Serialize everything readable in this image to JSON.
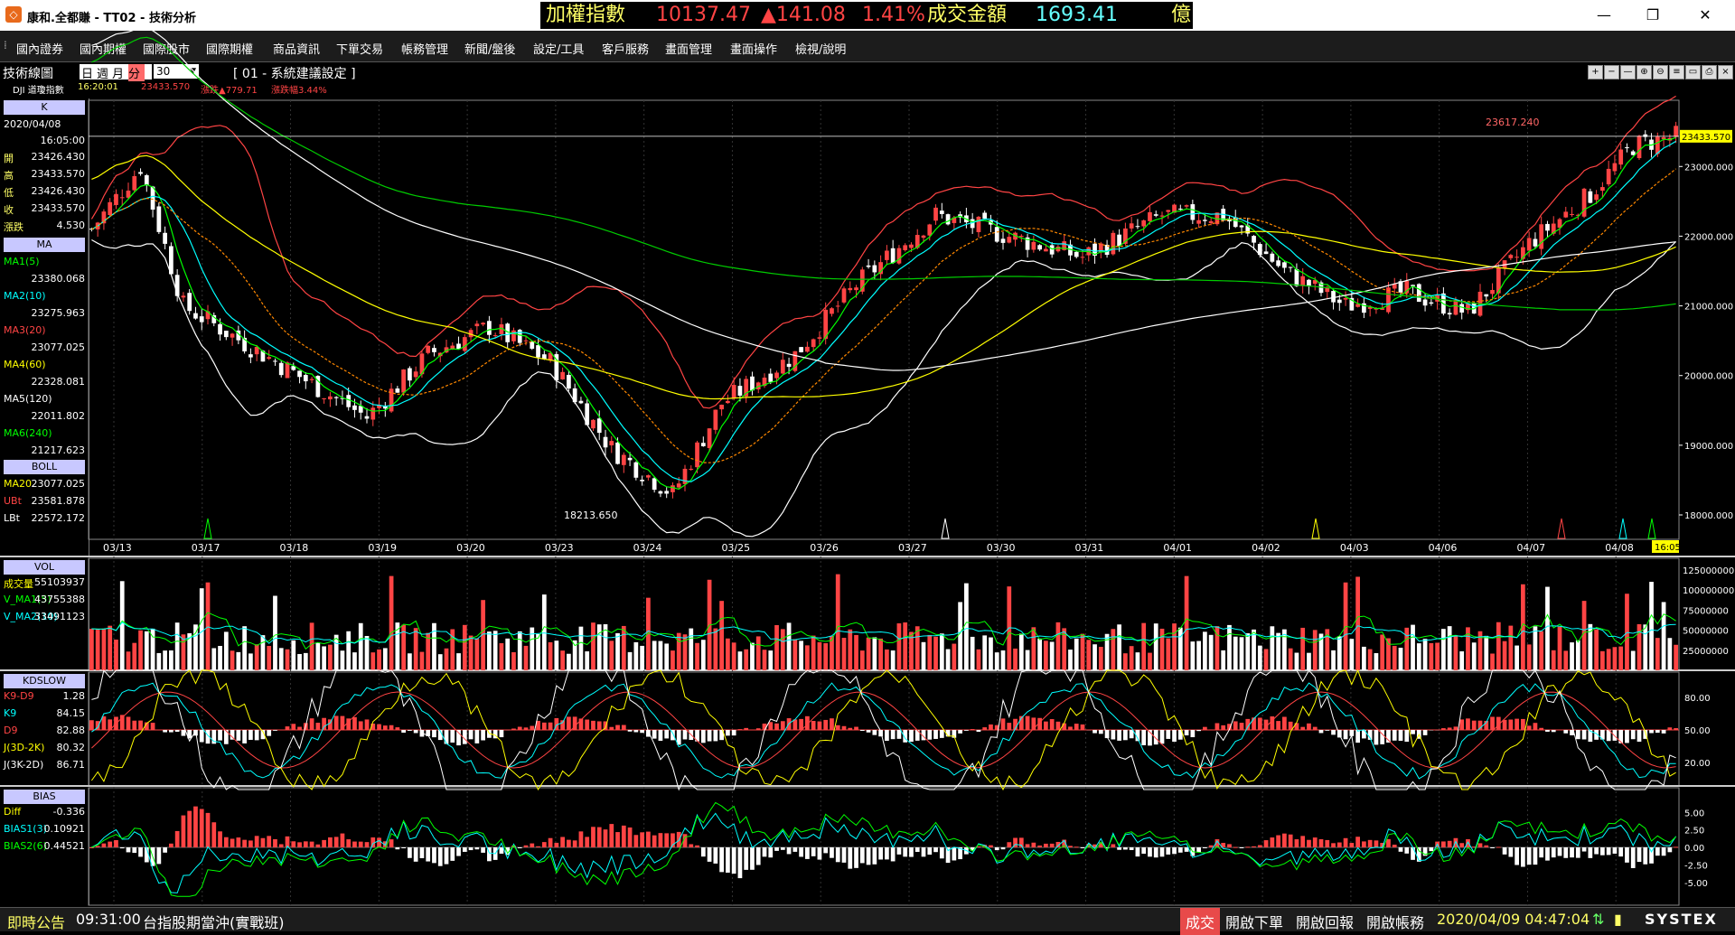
{
  "window": {
    "title": "康和.全都賺 - TT02 - 技術分析",
    "app_icon": "app-logo-icon"
  },
  "ticker": {
    "label": "加權指數",
    "value": "10137.47",
    "change": "▲141.08",
    "pct": "1.41%",
    "vol_label": "成交金額",
    "volume": "1693.41",
    "unit": "億"
  },
  "colors": {
    "up": "#ff4444",
    "down": "#ffffff",
    "panel_bg": "#000000",
    "accent": "#ffff00"
  },
  "menu": [
    "國內證券",
    "國內期權",
    "國際股市",
    "國際期權",
    "商品資訊",
    "下單交易",
    "帳務管理",
    "新聞/盤後",
    "設定/工具",
    "客戶服務",
    "畫面管理",
    "畫面操作",
    "檢視/說明"
  ],
  "toolbar": {
    "title": "技術線圖",
    "periods": [
      "日",
      "週",
      "月",
      "分"
    ],
    "active_period": "分",
    "interval": "30",
    "setting": "[ 01 - 系統建議設定 ]",
    "symbol": "DJI 道瓊指數",
    "time": "16:20:01",
    "price": "23433.570",
    "change": "漲跌▲779.71",
    "pct": "漲跌幅3.44%"
  },
  "k_panel": {
    "header": "K",
    "date": "2020/04/08",
    "time": "16:05:00",
    "rows": [
      {
        "label": "開",
        "value": "23426.430"
      },
      {
        "label": "高",
        "value": "23433.570"
      },
      {
        "label": "低",
        "value": "23426.430"
      },
      {
        "label": "收",
        "value": "23433.570"
      },
      {
        "label": "漲跌",
        "value": "4.530"
      }
    ]
  },
  "ma_panel": {
    "header": "MA",
    "rows": [
      {
        "label": "MA1(5)",
        "value": "23380.068",
        "color": "#00ff00"
      },
      {
        "label": "MA2(10)",
        "value": "23275.963",
        "color": "#00ffff"
      },
      {
        "label": "MA3(20)",
        "value": "23077.025",
        "color": "#ff4444"
      },
      {
        "label": "MA4(60)",
        "value": "22328.081",
        "color": "#ffff00"
      },
      {
        "label": "MA5(120)",
        "value": "22011.802",
        "color": "#ffffff"
      },
      {
        "label": "MA6(240)",
        "value": "21217.623",
        "color": "#00ff00"
      }
    ]
  },
  "boll_panel": {
    "header": "BOLL",
    "rows": [
      {
        "label": "MA20",
        "value": "23077.025",
        "color": "#ffff00"
      },
      {
        "label": "UBt",
        "value": "23581.878",
        "color": "#ff4444"
      },
      {
        "label": "LBt",
        "value": "22572.172",
        "color": "#ffffff"
      }
    ]
  },
  "vol_panel": {
    "header": "VOL",
    "rows": [
      {
        "label": "成交量",
        "value": "55103937",
        "color": "#ffff00"
      },
      {
        "label": "V_MA1(5)",
        "value": "43755388",
        "color": "#00ff00"
      },
      {
        "label": "V_MA2(10)",
        "value": "33491123",
        "color": "#00ffff"
      }
    ]
  },
  "kd_panel": {
    "header": "KDSLOW",
    "rows": [
      {
        "label": "K9-D9",
        "value": "1.28",
        "color": "#ff4444"
      },
      {
        "label": "K9",
        "value": "84.15",
        "color": "#00ffff"
      },
      {
        "label": "D9",
        "value": "82.88",
        "color": "#ff4444"
      },
      {
        "label": "J(3D-2K)",
        "value": "80.32",
        "color": "#ffff00"
      },
      {
        "label": "J(3K-2D)",
        "value": "86.71",
        "color": "#ffffff"
      }
    ]
  },
  "bias_panel": {
    "header": "BIAS",
    "rows": [
      {
        "label": "Diff",
        "value": "-0.336",
        "color": "#ffff00"
      },
      {
        "label": "BIAS1(3)",
        "value": "0.10921",
        "color": "#00ffff"
      },
      {
        "label": "BIAS2(6)",
        "value": "0.44521",
        "color": "#00ff00"
      }
    ]
  },
  "chart_data": {
    "type": "candlestick",
    "main_y_ticks": [
      "23000.000",
      "22000.000",
      "21000.000",
      "20000.000",
      "19000.000",
      "18000.000"
    ],
    "current_price": "23433.570",
    "high_label": "23617.240",
    "low_label": "18213.650",
    "current_time": "16:05",
    "x_labels": [
      "03/13",
      "03/17",
      "03/18",
      "03/19",
      "03/20",
      "03/23",
      "03/24",
      "03/25",
      "03/26",
      "03/27",
      "03/30",
      "03/31",
      "04/01",
      "04/02",
      "04/03",
      "04/06",
      "04/07",
      "04/08"
    ],
    "vol_y_ticks": [
      "125000000",
      "100000000",
      "75000000",
      "50000000",
      "25000000"
    ],
    "kd_y_ticks": [
      "80.00",
      "50.00",
      "20.00"
    ],
    "bias_y_ticks": [
      "5.00",
      "2.50",
      "0.00",
      "-2.50",
      "-5.00"
    ]
  },
  "statusbar": {
    "notice_label": "即時公告",
    "time": "09:31:00",
    "message": "台指股期當沖(實戰班)",
    "trade_btn": "成交",
    "order_btn": "開啟下單",
    "report_btn": "開啟回報",
    "account_btn": "開啟帳務",
    "datetime": "2020/04/09 04:47:04",
    "brand": "SYSTEX"
  }
}
